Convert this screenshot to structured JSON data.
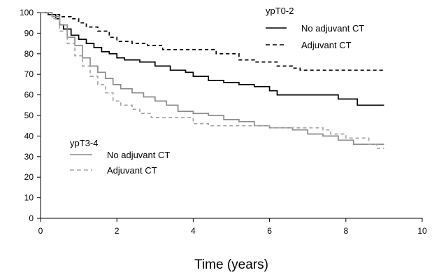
{
  "chart_data": {
    "type": "line",
    "title": "",
    "xlabel": "Time (years)",
    "ylabel": "",
    "xlim": [
      0,
      10
    ],
    "ylim": [
      0,
      100
    ],
    "x_ticks": [
      0,
      2,
      4,
      6,
      8,
      10
    ],
    "y_ticks": [
      0,
      10,
      20,
      30,
      40,
      50,
      60,
      70,
      80,
      90,
      100
    ],
    "y_tick_labels": [
      "0",
      "10",
      "20",
      "30",
      "40",
      "50",
      "60",
      "70",
      "80",
      "90",
      "100"
    ],
    "x_tick_labels": [
      "0",
      "2",
      "4",
      "6",
      "8",
      "10"
    ],
    "grid": false,
    "legend_groups": [
      {
        "title": "ypT0-2",
        "placement": "top-right",
        "entries": [
          "No adjuvant CT",
          "Adjuvant CT"
        ]
      },
      {
        "title": "ypT3-4",
        "placement": "bottom-left",
        "entries": [
          "No adjuvant CT",
          "Adjuvant CT"
        ]
      }
    ],
    "series": [
      {
        "group": "ypT0-2",
        "name": "No adjuvant CT",
        "color": "#000000",
        "dash": "solid",
        "step": true,
        "points": [
          [
            0,
            100
          ],
          [
            0.2,
            99
          ],
          [
            0.4,
            97
          ],
          [
            0.5,
            94
          ],
          [
            0.6,
            92
          ],
          [
            0.8,
            89
          ],
          [
            1.0,
            87
          ],
          [
            1.2,
            85
          ],
          [
            1.4,
            83
          ],
          [
            1.6,
            81
          ],
          [
            1.8,
            80
          ],
          [
            2.0,
            78
          ],
          [
            2.2,
            77
          ],
          [
            2.6,
            76
          ],
          [
            3.0,
            74
          ],
          [
            3.4,
            72
          ],
          [
            3.8,
            71
          ],
          [
            4.0,
            69
          ],
          [
            4.4,
            67
          ],
          [
            4.8,
            66
          ],
          [
            5.2,
            65
          ],
          [
            5.6,
            64
          ],
          [
            6.0,
            62
          ],
          [
            6.2,
            60
          ],
          [
            7.0,
            60
          ],
          [
            7.4,
            60
          ],
          [
            7.8,
            58
          ],
          [
            8.3,
            55
          ],
          [
            9.0,
            55
          ]
        ]
      },
      {
        "group": "ypT0-2",
        "name": "Adjuvant CT",
        "color": "#000000",
        "dash": "dashed",
        "step": true,
        "points": [
          [
            0,
            100
          ],
          [
            0.3,
            99
          ],
          [
            0.5,
            98
          ],
          [
            0.8,
            97
          ],
          [
            1.0,
            95
          ],
          [
            1.2,
            93
          ],
          [
            1.5,
            91
          ],
          [
            1.8,
            88
          ],
          [
            2.0,
            86
          ],
          [
            2.4,
            85
          ],
          [
            2.8,
            84
          ],
          [
            3.2,
            82
          ],
          [
            4.0,
            82
          ],
          [
            4.6,
            80
          ],
          [
            5.2,
            77
          ],
          [
            5.6,
            76
          ],
          [
            6.2,
            74
          ],
          [
            6.6,
            73
          ],
          [
            6.8,
            72
          ],
          [
            9.0,
            72
          ]
        ]
      },
      {
        "group": "ypT3-4",
        "name": "No adjuvant CT",
        "color": "#8c8c8c",
        "dash": "solid",
        "step": true,
        "points": [
          [
            0,
            100
          ],
          [
            0.3,
            98
          ],
          [
            0.5,
            94
          ],
          [
            0.7,
            88
          ],
          [
            0.9,
            84
          ],
          [
            1.1,
            78
          ],
          [
            1.3,
            74
          ],
          [
            1.5,
            71
          ],
          [
            1.7,
            68
          ],
          [
            1.9,
            65
          ],
          [
            2.1,
            63
          ],
          [
            2.4,
            61
          ],
          [
            2.7,
            59
          ],
          [
            3.0,
            57
          ],
          [
            3.3,
            55
          ],
          [
            3.6,
            52
          ],
          [
            4.0,
            51
          ],
          [
            4.4,
            50
          ],
          [
            4.8,
            48
          ],
          [
            5.2,
            47
          ],
          [
            5.6,
            45
          ],
          [
            6.0,
            44
          ],
          [
            6.6,
            43
          ],
          [
            7.0,
            41
          ],
          [
            7.4,
            40
          ],
          [
            7.8,
            38
          ],
          [
            8.2,
            36
          ],
          [
            9.0,
            36
          ]
        ]
      },
      {
        "group": "ypT3-4",
        "name": "Adjuvant CT",
        "color": "#a6a6a6",
        "dash": "dashed",
        "step": true,
        "points": [
          [
            0,
            100
          ],
          [
            0.3,
            97
          ],
          [
            0.5,
            91
          ],
          [
            0.7,
            85
          ],
          [
            0.9,
            79
          ],
          [
            1.1,
            74
          ],
          [
            1.3,
            69
          ],
          [
            1.5,
            65
          ],
          [
            1.7,
            61
          ],
          [
            1.9,
            57
          ],
          [
            2.1,
            55
          ],
          [
            2.4,
            53
          ],
          [
            2.6,
            51
          ],
          [
            2.9,
            49
          ],
          [
            3.5,
            49
          ],
          [
            4.0,
            46
          ],
          [
            4.4,
            45
          ],
          [
            5.5,
            45
          ],
          [
            6.0,
            44
          ],
          [
            7.0,
            44
          ],
          [
            7.4,
            43
          ],
          [
            7.6,
            41
          ],
          [
            8.0,
            39
          ],
          [
            8.6,
            36
          ],
          [
            8.8,
            34
          ],
          [
            9.0,
            34
          ]
        ]
      }
    ]
  }
}
